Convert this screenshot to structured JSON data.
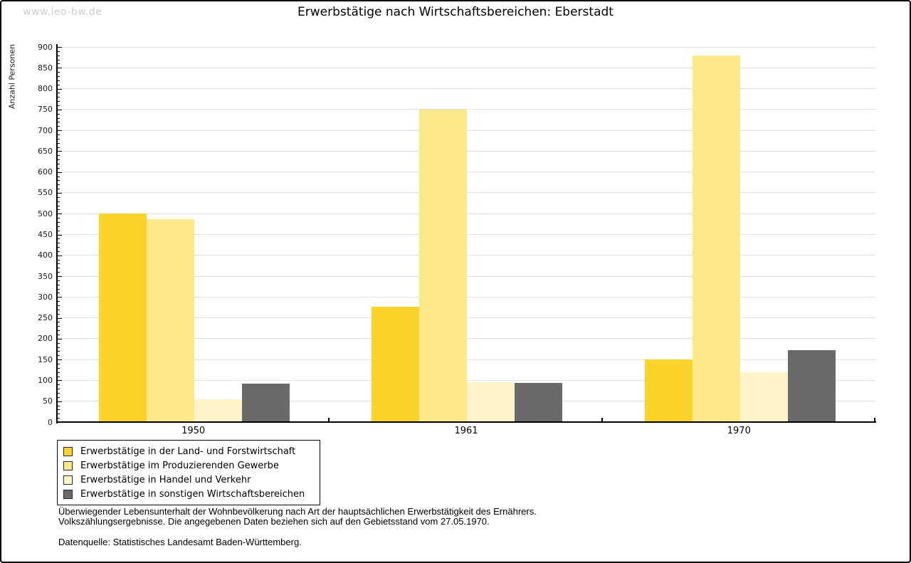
{
  "watermark": "www.leo-bw.de",
  "header": {
    "title": "Erwerbstätige nach Wirtschaftsbereichen: Eberstadt"
  },
  "chart_data": {
    "type": "bar",
    "title": "Erwerbstätige nach Wirtschaftsbereichen: Eberstadt",
    "xlabel": "",
    "ylabel": "Anzahl Personen",
    "ylim": [
      0,
      900
    ],
    "ytick_step": 50,
    "y_minor_tick_step": 10,
    "grid": true,
    "legend_position": "bottom-left",
    "categories": [
      "1950",
      "1961",
      "1970"
    ],
    "series": [
      {
        "name": "Erwerbstätige in der Land- und Forstwirtschaft",
        "color": "#FCD22C",
        "values": [
          500,
          277,
          150
        ]
      },
      {
        "name": "Erwerbstätige im Produzierenden Gewerbe",
        "color": "#FBE88A",
        "values": [
          487,
          750,
          880
        ]
      },
      {
        "name": "Erwerbstätige in Handel und Verkehr",
        "color": "#FDF4C9",
        "values": [
          55,
          96,
          120
        ]
      },
      {
        "name": "Erwerbstätige in sonstigen Wirtschaftsbereichen",
        "color": "#6A6A6A",
        "values": [
          93,
          94,
          172
        ]
      }
    ]
  },
  "footer": {
    "description_line1": "Überwiegender Lebensunterhalt der Wohnbevölkerung nach Art der hauptsächlichen Erwerbstätigkeit des Ernährers.",
    "description_line2": "Volkszählungsergebnisse. Die angegebenen Daten beziehen sich auf den Gebietsstand vom 27.05.1970.",
    "source": "Datenquelle: Statistisches Landesamt Baden-Württemberg."
  }
}
